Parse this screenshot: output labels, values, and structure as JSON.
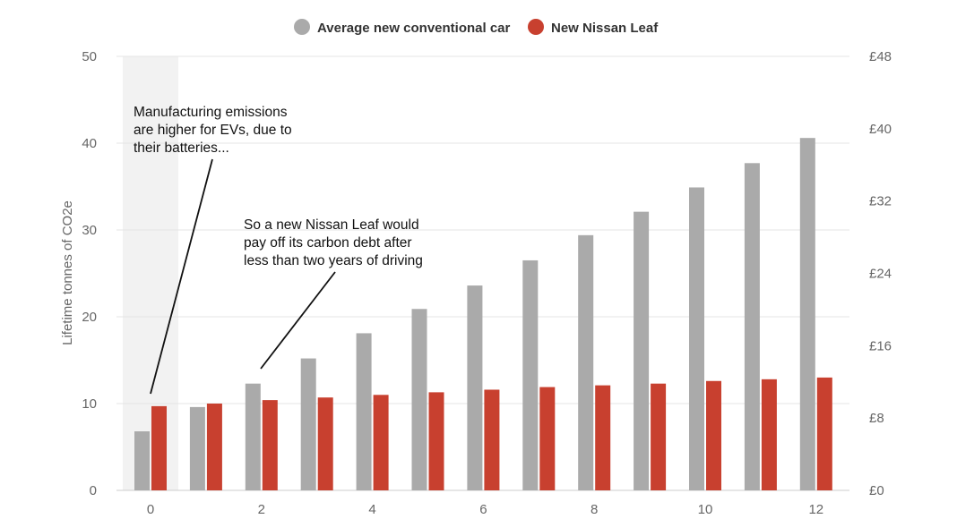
{
  "legend": {
    "conventional_label": "Average new conventional car",
    "leaf_label": "New Nissan Leaf"
  },
  "annotations": {
    "manufacturing": [
      "Manufacturing emissions",
      "are higher for EVs, due to",
      "their batteries..."
    ],
    "payoff": [
      "So a new Nissan Leaf would",
      "pay off its carbon debt after",
      "less than two years of driving"
    ]
  },
  "chart_data": {
    "type": "bar",
    "title": "",
    "xlabel": "",
    "ylabel": "Lifetime tonnes of CO2e",
    "x": [
      0,
      1,
      2,
      3,
      4,
      5,
      6,
      7,
      8,
      9,
      10,
      11,
      12
    ],
    "x_tick_labels": [
      "0",
      "2",
      "4",
      "6",
      "8",
      "10",
      "12"
    ],
    "x_tick_values": [
      0,
      2,
      4,
      6,
      8,
      10,
      12
    ],
    "ylim": [
      0,
      50
    ],
    "y_ticks": [
      0,
      10,
      20,
      30,
      40,
      50
    ],
    "y2_tick_labels": [
      "£0",
      "£8",
      "£16",
      "£24",
      "£32",
      "£40",
      "£48"
    ],
    "y2_lim": [
      0,
      48
    ],
    "grid": true,
    "highlight_x": 0,
    "legend_position": "top-center",
    "series": [
      {
        "name": "Average new conventional car",
        "color": "#aaaaaa",
        "values": [
          6.8,
          9.6,
          12.3,
          15.2,
          18.1,
          20.9,
          23.6,
          26.5,
          29.4,
          32.1,
          34.9,
          37.7,
          40.6
        ]
      },
      {
        "name": "New Nissan Leaf",
        "color": "#c8402f",
        "values": [
          9.7,
          10.0,
          10.4,
          10.7,
          11.0,
          11.3,
          11.6,
          11.9,
          12.1,
          12.3,
          12.6,
          12.8,
          13.0
        ]
      }
    ]
  }
}
